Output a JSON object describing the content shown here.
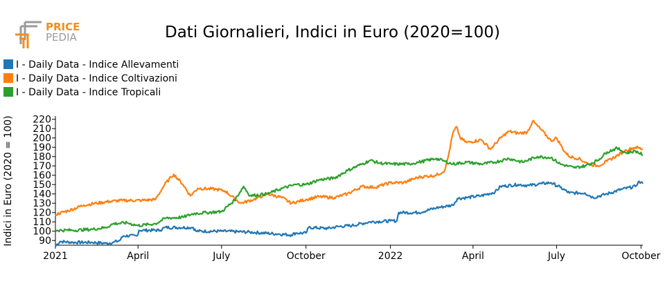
{
  "logo": {
    "word_top": "PRICE",
    "word_bottom": "PEDIA",
    "color_orange": "#f28c1c",
    "color_gray": "#9b9b9b"
  },
  "chart_data": {
    "type": "line",
    "title": "Dati Giornalieri, Indici in Euro (2020=100)",
    "xlabel": "",
    "ylabel": "Indici in Euro (2020 = 100)",
    "ylim": [
      85,
      222
    ],
    "yticks": [
      90,
      100,
      110,
      120,
      130,
      140,
      150,
      160,
      170,
      180,
      190,
      200,
      210,
      220
    ],
    "xlim": [
      "2021-01-01",
      "2022-10-03"
    ],
    "xticks": [
      {
        "date": "2021-01-01",
        "label": "2021"
      },
      {
        "date": "2021-04-01",
        "label": "April"
      },
      {
        "date": "2021-07-01",
        "label": "July"
      },
      {
        "date": "2021-10-01",
        "label": "October"
      },
      {
        "date": "2022-01-01",
        "label": "2022"
      },
      {
        "date": "2022-04-01",
        "label": "April"
      },
      {
        "date": "2022-07-01",
        "label": "July"
      },
      {
        "date": "2022-10-01",
        "label": "October"
      }
    ],
    "legend_position": "top-left",
    "grid": false,
    "series": [
      {
        "name": "I - Daily Data - Indice Allevamenti",
        "color": "#1f77b4",
        "points": [
          [
            "2021-01-01",
            84
          ],
          [
            "2021-01-06",
            89
          ],
          [
            "2021-01-20",
            88
          ],
          [
            "2021-02-10",
            88
          ],
          [
            "2021-02-25",
            87
          ],
          [
            "2021-03-05",
            88
          ],
          [
            "2021-03-12",
            90
          ],
          [
            "2021-03-16",
            95
          ],
          [
            "2021-03-31",
            95
          ],
          [
            "2021-04-02",
            101
          ],
          [
            "2021-04-25",
            101
          ],
          [
            "2021-04-30",
            104
          ],
          [
            "2021-05-31",
            104
          ],
          [
            "2021-06-03",
            100
          ],
          [
            "2021-07-01",
            100
          ],
          [
            "2021-08-01",
            99
          ],
          [
            "2021-09-01",
            97
          ],
          [
            "2021-09-15",
            96
          ],
          [
            "2021-09-20",
            98
          ],
          [
            "2021-10-01",
            98
          ],
          [
            "2021-10-04",
            104
          ],
          [
            "2021-10-25",
            103
          ],
          [
            "2021-11-05",
            105
          ],
          [
            "2021-11-20",
            106
          ],
          [
            "2021-12-10",
            110
          ],
          [
            "2022-01-01",
            111
          ],
          [
            "2022-01-08",
            111
          ],
          [
            "2022-01-10",
            120
          ],
          [
            "2022-02-01",
            120
          ],
          [
            "2022-02-20",
            125
          ],
          [
            "2022-03-10",
            128
          ],
          [
            "2022-03-15",
            135
          ],
          [
            "2022-03-25",
            136
          ],
          [
            "2022-04-10",
            138
          ],
          [
            "2022-04-25",
            142
          ],
          [
            "2022-05-01",
            148
          ],
          [
            "2022-05-20",
            150
          ],
          [
            "2022-06-01",
            149
          ],
          [
            "2022-06-15",
            151
          ],
          [
            "2022-06-25",
            152
          ],
          [
            "2022-07-05",
            147
          ],
          [
            "2022-07-15",
            141
          ],
          [
            "2022-08-01",
            141
          ],
          [
            "2022-08-10",
            136
          ],
          [
            "2022-08-25",
            140
          ],
          [
            "2022-09-10",
            145
          ],
          [
            "2022-09-25",
            148
          ],
          [
            "2022-09-28",
            153
          ],
          [
            "2022-10-03",
            151
          ]
        ]
      },
      {
        "name": "I - Daily Data - Indice Coltivazioni",
        "color": "#ff7f0e",
        "points": [
          [
            "2021-01-01",
            118
          ],
          [
            "2021-01-15",
            122
          ],
          [
            "2021-02-01",
            128
          ],
          [
            "2021-02-15",
            130
          ],
          [
            "2021-03-01",
            132
          ],
          [
            "2021-03-15",
            133
          ],
          [
            "2021-04-05",
            133
          ],
          [
            "2021-04-20",
            134
          ],
          [
            "2021-04-30",
            150
          ],
          [
            "2021-05-07",
            158
          ],
          [
            "2021-05-10",
            161
          ],
          [
            "2021-05-20",
            150
          ],
          [
            "2021-05-28",
            138
          ],
          [
            "2021-06-05",
            146
          ],
          [
            "2021-06-25",
            145
          ],
          [
            "2021-07-05",
            143
          ],
          [
            "2021-07-15",
            135
          ],
          [
            "2021-07-22",
            130
          ],
          [
            "2021-08-05",
            134
          ],
          [
            "2021-08-20",
            140
          ],
          [
            "2021-09-05",
            136
          ],
          [
            "2021-09-15",
            130
          ],
          [
            "2021-10-01",
            134
          ],
          [
            "2021-10-15",
            137
          ],
          [
            "2021-11-01",
            136
          ],
          [
            "2021-11-15",
            140
          ],
          [
            "2021-12-01",
            148
          ],
          [
            "2021-12-15",
            147
          ],
          [
            "2022-01-01",
            152
          ],
          [
            "2022-01-15",
            152
          ],
          [
            "2022-02-01",
            158
          ],
          [
            "2022-02-20",
            160
          ],
          [
            "2022-03-01",
            165
          ],
          [
            "2022-03-05",
            180
          ],
          [
            "2022-03-10",
            205
          ],
          [
            "2022-03-14",
            212
          ],
          [
            "2022-03-18",
            200
          ],
          [
            "2022-03-25",
            195
          ],
          [
            "2022-04-10",
            198
          ],
          [
            "2022-04-20",
            188
          ],
          [
            "2022-05-01",
            200
          ],
          [
            "2022-05-10",
            207
          ],
          [
            "2022-05-20",
            205
          ],
          [
            "2022-05-30",
            206
          ],
          [
            "2022-06-05",
            218
          ],
          [
            "2022-06-15",
            208
          ],
          [
            "2022-06-25",
            197
          ],
          [
            "2022-07-01",
            200
          ],
          [
            "2022-07-10",
            185
          ],
          [
            "2022-07-15",
            180
          ],
          [
            "2022-07-25",
            178
          ],
          [
            "2022-08-05",
            172
          ],
          [
            "2022-08-15",
            170
          ],
          [
            "2022-08-25",
            175
          ],
          [
            "2022-09-05",
            181
          ],
          [
            "2022-09-15",
            187
          ],
          [
            "2022-09-25",
            190
          ],
          [
            "2022-10-03",
            188
          ]
        ]
      },
      {
        "name": "I - Daily Data - Indice Tropicali",
        "color": "#2ca02c",
        "points": [
          [
            "2021-01-01",
            101
          ],
          [
            "2021-01-20",
            101
          ],
          [
            "2021-02-10",
            102
          ],
          [
            "2021-02-25",
            104
          ],
          [
            "2021-03-05",
            108
          ],
          [
            "2021-03-20",
            109
          ],
          [
            "2021-04-01",
            106
          ],
          [
            "2021-04-20",
            108
          ],
          [
            "2021-05-01",
            114
          ],
          [
            "2021-05-20",
            115
          ],
          [
            "2021-06-01",
            119
          ],
          [
            "2021-06-15",
            120
          ],
          [
            "2021-07-01",
            121
          ],
          [
            "2021-07-15",
            133
          ],
          [
            "2021-07-25",
            148
          ],
          [
            "2021-08-01",
            138
          ],
          [
            "2021-08-20",
            140
          ],
          [
            "2021-09-05",
            146
          ],
          [
            "2021-09-20",
            150
          ],
          [
            "2021-10-01",
            150
          ],
          [
            "2021-10-15",
            155
          ],
          [
            "2021-11-01",
            157
          ],
          [
            "2021-11-15",
            165
          ],
          [
            "2021-12-01",
            172
          ],
          [
            "2021-12-10",
            176
          ],
          [
            "2021-12-20",
            173
          ],
          [
            "2022-01-01",
            172
          ],
          [
            "2022-01-20",
            172
          ],
          [
            "2022-02-01",
            174
          ],
          [
            "2022-02-20",
            178
          ],
          [
            "2022-03-01",
            175
          ],
          [
            "2022-03-10",
            172
          ],
          [
            "2022-03-25",
            174
          ],
          [
            "2022-04-10",
            172
          ],
          [
            "2022-04-25",
            174
          ],
          [
            "2022-05-10",
            178
          ],
          [
            "2022-05-25",
            174
          ],
          [
            "2022-06-10",
            180
          ],
          [
            "2022-06-25",
            179
          ],
          [
            "2022-07-05",
            172
          ],
          [
            "2022-07-20",
            168
          ],
          [
            "2022-08-01",
            170
          ],
          [
            "2022-08-15",
            176
          ],
          [
            "2022-08-25",
            185
          ],
          [
            "2022-09-05",
            189
          ],
          [
            "2022-09-15",
            184
          ],
          [
            "2022-09-25",
            186
          ],
          [
            "2022-10-03",
            182
          ]
        ]
      }
    ]
  }
}
